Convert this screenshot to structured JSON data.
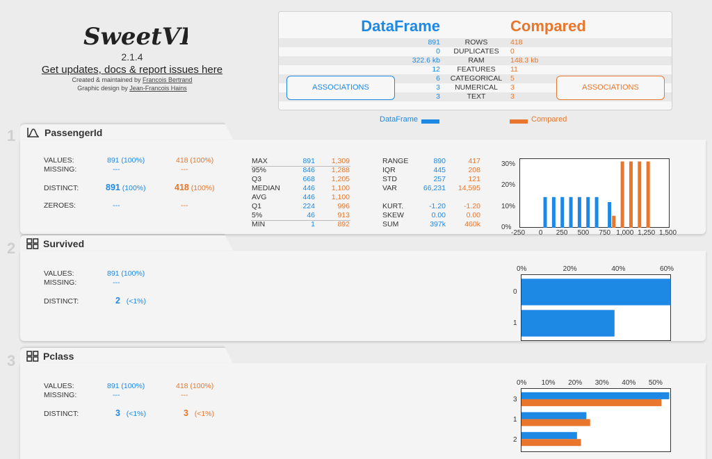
{
  "brand": {
    "logo_text": "SweetVIZ",
    "version": "2.1.4",
    "updates_link": "Get updates, docs & report issues here",
    "created_prefix": "Created & maintained by ",
    "created_name": "Francois Bertrand",
    "design_prefix": "Graphic design by ",
    "design_name": "Jean-Francois Hains"
  },
  "summary": {
    "left_title": "DataFrame",
    "right_title": "Compared",
    "rows": [
      {
        "key": "ROWS",
        "left": "891",
        "right": "418"
      },
      {
        "key": "DUPLICATES",
        "left": "0",
        "right": "0"
      },
      {
        "key": "RAM",
        "left": "322.6 kb",
        "right": "148.3 kb"
      },
      {
        "key": "FEATURES",
        "left": "12",
        "right": "11"
      },
      {
        "key": "CATEGORICAL",
        "left": "6",
        "right": "5"
      },
      {
        "key": "NUMERICAL",
        "left": "3",
        "right": "3"
      },
      {
        "key": "TEXT",
        "left": "3",
        "right": "3"
      }
    ],
    "assoc_left": "ASSOCIATIONS",
    "assoc_right": "ASSOCIATIONS"
  },
  "legend": {
    "left": "DataFrame",
    "right": "Compared"
  },
  "colors": {
    "primary": "#1e88e5",
    "compare": "#e8762c"
  },
  "sections": [
    {
      "number": "1",
      "title": "PassengerId",
      "icon": "numeric-distribution-icon",
      "values_label": "VALUES:",
      "values_left": "891 (100%)",
      "values_right": "418 (100%)",
      "missing_label": "MISSING:",
      "missing_left": "---",
      "missing_right": "---",
      "distinct_label": "DISTINCT:",
      "distinct_left_big": "891",
      "distinct_left_pct": "(100%)",
      "distinct_right_big": "418",
      "distinct_right_pct": "(100%)",
      "zeroes_label": "ZEROES:",
      "zeroes_left": "---",
      "zeroes_right": "---",
      "quantiles": [
        {
          "k": "MAX",
          "l": "891",
          "r": "1,309"
        },
        {
          "k": "95%",
          "l": "846",
          "r": "1,288"
        },
        {
          "k": "Q3",
          "l": "668",
          "r": "1,205"
        },
        {
          "k": "MEDIAN",
          "l": "446",
          "r": "1,100"
        },
        {
          "k": "AVG",
          "l": "446",
          "r": "1,100"
        },
        {
          "k": "Q1",
          "l": "224",
          "r": "996"
        },
        {
          "k": "5%",
          "l": "46",
          "r": "913"
        },
        {
          "k": "MIN",
          "l": "1",
          "r": "892"
        }
      ],
      "stats_top": [
        {
          "k": "RANGE",
          "l": "890",
          "r": "417"
        },
        {
          "k": "IQR",
          "l": "445",
          "r": "208"
        },
        {
          "k": "STD",
          "l": "257",
          "r": "121"
        },
        {
          "k": "VAR",
          "l": "66,231",
          "r": "14,595"
        }
      ],
      "stats_bottom": [
        {
          "k": "KURT.",
          "l": "-1.20",
          "r": "-1.20"
        },
        {
          "k": "SKEW",
          "l": "0.00",
          "r": "0.00"
        },
        {
          "k": "SUM",
          "l": "397k",
          "r": "460k"
        }
      ]
    },
    {
      "number": "2",
      "title": "Survived",
      "icon": "categorical-grid-icon",
      "values_label": "VALUES:",
      "values_left": "891 (100%)",
      "missing_label": "MISSING:",
      "missing_left": "---",
      "distinct_label": "DISTINCT:",
      "distinct_left_big": "2",
      "distinct_left_pct": "(<1%)"
    },
    {
      "number": "3",
      "title": "Pclass",
      "icon": "categorical-grid-icon",
      "values_label": "VALUES:",
      "values_left": "891 (100%)",
      "values_right": "418 (100%)",
      "missing_label": "MISSING:",
      "missing_left": "---",
      "missing_right": "---",
      "distinct_label": "DISTINCT:",
      "distinct_left_big": "3",
      "distinct_left_pct": "(<1%)",
      "distinct_right_big": "3",
      "distinct_right_pct": "(<1%)"
    }
  ],
  "chart_data": [
    {
      "type": "bar",
      "title": "",
      "x_ticks": [
        "-250",
        "0",
        "250",
        "500",
        "750",
        "1,000",
        "1,250",
        "1,500"
      ],
      "xlim": [
        -250,
        1500
      ],
      "y_ticks": [
        "0%",
        "10%",
        "20%",
        "30%"
      ],
      "ylim": [
        0,
        33
      ],
      "series": [
        {
          "name": "DataFrame",
          "x": [
            0,
            100,
            200,
            300,
            400,
            500,
            600,
            750
          ],
          "values": [
            14.6,
            14.6,
            14.6,
            14.6,
            14.6,
            14.6,
            14.6,
            12.2
          ]
        },
        {
          "name": "Compared",
          "x": [
            800,
            900,
            1000,
            1100,
            1200
          ],
          "values": [
            5.7,
            31.5,
            31.5,
            31.5,
            31.5
          ]
        }
      ]
    },
    {
      "type": "bar",
      "orientation": "horizontal",
      "categories": [
        "0",
        "1"
      ],
      "x_ticks": [
        "0%",
        "20%",
        "40%",
        "60%"
      ],
      "xlim": [
        0,
        62
      ],
      "series": [
        {
          "name": "DataFrame",
          "values": [
            61.6,
            38.4
          ]
        }
      ]
    },
    {
      "type": "bar",
      "orientation": "horizontal",
      "categories": [
        "3",
        "1",
        "2"
      ],
      "x_ticks": [
        "0%",
        "10%",
        "20%",
        "30%",
        "40%",
        "50%"
      ],
      "xlim": [
        0,
        56
      ],
      "series": [
        {
          "name": "DataFrame",
          "values": [
            55.1,
            24.2,
            20.7
          ]
        },
        {
          "name": "Compared",
          "values": [
            52.2,
            25.6,
            22.2
          ]
        }
      ]
    }
  ]
}
